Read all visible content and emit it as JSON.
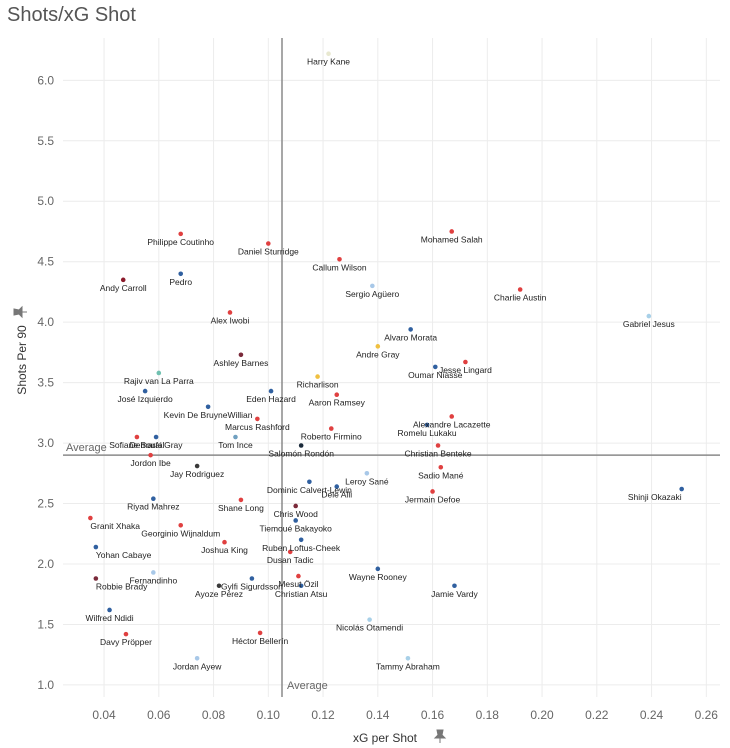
{
  "header": {
    "title": "Shots/xG Shot"
  },
  "chart_data": {
    "type": "scatter",
    "title": "Shots/xG Shot",
    "xlabel": "xG per Shot",
    "ylabel": "Shots Per 90",
    "xlim": [
      0.025,
      0.265
    ],
    "ylim": [
      0.9,
      6.35
    ],
    "xticks": [
      "0.04",
      "0.06",
      "0.08",
      "0.10",
      "0.12",
      "0.14",
      "0.16",
      "0.18",
      "0.20",
      "0.22",
      "0.24",
      "0.26"
    ],
    "yticks": [
      "1.0",
      "1.5",
      "2.0",
      "2.5",
      "3.0",
      "3.5",
      "4.0",
      "4.5",
      "5.0",
      "5.5",
      "6.0"
    ],
    "grid": true,
    "reference_lines": {
      "x": {
        "value": 0.105,
        "label": "Average"
      },
      "y": {
        "value": 2.9,
        "label": "Average"
      }
    },
    "points": [
      {
        "name": "Harry Kane",
        "x": 0.122,
        "y": 6.22,
        "color": "#e8e8d0"
      },
      {
        "name": "Mohamed Salah",
        "x": 0.167,
        "y": 4.75,
        "color": "#e04040"
      },
      {
        "name": "Philippe Coutinho",
        "x": 0.068,
        "y": 4.73,
        "color": "#e04040"
      },
      {
        "name": "Daniel Sturridge",
        "x": 0.1,
        "y": 4.65,
        "color": "#e04040"
      },
      {
        "name": "Callum Wilson",
        "x": 0.126,
        "y": 4.52,
        "color": "#e04040"
      },
      {
        "name": "Pedro",
        "x": 0.068,
        "y": 4.4,
        "color": "#3060a0"
      },
      {
        "name": "Andy Carroll",
        "x": 0.047,
        "y": 4.35,
        "color": "#8b1a2b"
      },
      {
        "name": "Sergio Agüero",
        "x": 0.138,
        "y": 4.3,
        "color": "#a8c8e8"
      },
      {
        "name": "Charlie Austin",
        "x": 0.192,
        "y": 4.27,
        "color": "#e04040"
      },
      {
        "name": "Alex Iwobi",
        "x": 0.086,
        "y": 4.08,
        "color": "#e04040"
      },
      {
        "name": "Gabriel Jesus",
        "x": 0.239,
        "y": 4.05,
        "color": "#a8d0e8"
      },
      {
        "name": "Alvaro Morata",
        "x": 0.152,
        "y": 3.94,
        "color": "#3060a0"
      },
      {
        "name": "Andre Gray",
        "x": 0.14,
        "y": 3.8,
        "color": "#f0c040"
      },
      {
        "name": "Ashley Barnes",
        "x": 0.09,
        "y": 3.73,
        "color": "#7a2a3a"
      },
      {
        "name": "Jesse Lingard",
        "x": 0.172,
        "y": 3.67,
        "color": "#e04040"
      },
      {
        "name": "Oumar Niasse",
        "x": 0.161,
        "y": 3.63,
        "color": "#3060a0"
      },
      {
        "name": "Rajiv van La Parra",
        "x": 0.06,
        "y": 3.58,
        "color": "#70c0b0"
      },
      {
        "name": "Richarlison",
        "x": 0.118,
        "y": 3.55,
        "color": "#f0c040"
      },
      {
        "name": "Eden Hazard",
        "x": 0.101,
        "y": 3.43,
        "color": "#3060a0"
      },
      {
        "name": "Aaron Ramsey",
        "x": 0.125,
        "y": 3.4,
        "color": "#e04040"
      },
      {
        "name": "José Izquierdo",
        "x": 0.055,
        "y": 3.43,
        "color": "#3060a0"
      },
      {
        "name": "Kevin De BruyneWillian",
        "x": 0.078,
        "y": 3.3,
        "color": "#3060a0"
      },
      {
        "name": "Alexandre Lacazette",
        "x": 0.167,
        "y": 3.22,
        "color": "#e04040"
      },
      {
        "name": "Marcus Rashford",
        "x": 0.096,
        "y": 3.2,
        "color": "#e04040"
      },
      {
        "name": "Roberto Firmino",
        "x": 0.123,
        "y": 3.12,
        "color": "#e04040"
      },
      {
        "name": "Romelu Lukaku",
        "x": 0.158,
        "y": 3.15,
        "color": "#3060a0"
      },
      {
        "name": "Sofiane Boufal",
        "x": 0.052,
        "y": 3.05,
        "color": "#e04040"
      },
      {
        "name": "Demarai Gray",
        "x": 0.059,
        "y": 3.05,
        "color": "#3060a0"
      },
      {
        "name": "Tom Ince",
        "x": 0.088,
        "y": 3.05,
        "color": "#70a0c0"
      },
      {
        "name": "Salomón Rondón",
        "x": 0.112,
        "y": 2.98,
        "color": "#1a2a3a"
      },
      {
        "name": "Christian Benteke",
        "x": 0.162,
        "y": 2.98,
        "color": "#e04040"
      },
      {
        "name": "Jordon Ibe",
        "x": 0.057,
        "y": 2.9,
        "color": "#e04040"
      },
      {
        "name": "Jay Rodriguez",
        "x": 0.074,
        "y": 2.81,
        "color": "#3a3a3a"
      },
      {
        "name": "Sadio Mané",
        "x": 0.163,
        "y": 2.8,
        "color": "#e04040"
      },
      {
        "name": "Leroy Sané",
        "x": 0.136,
        "y": 2.75,
        "color": "#a8c8e8"
      },
      {
        "name": "Dominic Calvert-Lewin",
        "x": 0.115,
        "y": 2.68,
        "color": "#3060a0"
      },
      {
        "name": "Dele Alli",
        "x": 0.125,
        "y": 2.64,
        "color": "#3060a0"
      },
      {
        "name": "Jermain Defoe",
        "x": 0.16,
        "y": 2.6,
        "color": "#e04040"
      },
      {
        "name": "Shinji Okazaki",
        "x": 0.251,
        "y": 2.62,
        "color": "#3060a0"
      },
      {
        "name": "Riyad Mahrez",
        "x": 0.058,
        "y": 2.54,
        "color": "#3060a0"
      },
      {
        "name": "Shane Long",
        "x": 0.09,
        "y": 2.53,
        "color": "#e04040"
      },
      {
        "name": "Chris Wood",
        "x": 0.11,
        "y": 2.48,
        "color": "#7a2a3a"
      },
      {
        "name": "Granit Xhaka",
        "x": 0.035,
        "y": 2.38,
        "color": "#e04040"
      },
      {
        "name": "Tiemoué Bakayoko",
        "x": 0.11,
        "y": 2.36,
        "color": "#3060a0"
      },
      {
        "name": "Georginio Wijnaldum",
        "x": 0.068,
        "y": 2.32,
        "color": "#e04040"
      },
      {
        "name": "Joshua King",
        "x": 0.084,
        "y": 2.18,
        "color": "#e04040"
      },
      {
        "name": "Ruben Loftus-Cheek",
        "x": 0.112,
        "y": 2.2,
        "color": "#3060a0"
      },
      {
        "name": "Yohan Cabaye",
        "x": 0.037,
        "y": 2.14,
        "color": "#3060a0"
      },
      {
        "name": "Dusan Tadic",
        "x": 0.108,
        "y": 2.1,
        "color": "#e04040"
      },
      {
        "name": "Robbie Brady",
        "x": 0.037,
        "y": 1.88,
        "color": "#7a2a3a"
      },
      {
        "name": "Fernandinho",
        "x": 0.058,
        "y": 1.93,
        "color": "#a8c8e8"
      },
      {
        "name": "Gylfi Sigurdsson",
        "x": 0.094,
        "y": 1.88,
        "color": "#3060a0"
      },
      {
        "name": "Ayoze Pérez",
        "x": 0.082,
        "y": 1.82,
        "color": "#3a3a3a"
      },
      {
        "name": "Mesut Özil",
        "x": 0.111,
        "y": 1.9,
        "color": "#e04040"
      },
      {
        "name": "Christian Atsu",
        "x": 0.112,
        "y": 1.82,
        "color": "#3060a0"
      },
      {
        "name": "Wayne Rooney",
        "x": 0.14,
        "y": 1.96,
        "color": "#3060a0"
      },
      {
        "name": "Jamie Vardy",
        "x": 0.168,
        "y": 1.82,
        "color": "#3060a0"
      },
      {
        "name": "Wilfred Ndidi",
        "x": 0.042,
        "y": 1.62,
        "color": "#3060a0"
      },
      {
        "name": "Nicolás Otamendi",
        "x": 0.137,
        "y": 1.54,
        "color": "#a8d0e8"
      },
      {
        "name": "Davy Pröpper",
        "x": 0.048,
        "y": 1.42,
        "color": "#e04040"
      },
      {
        "name": "Héctor Bellerín",
        "x": 0.097,
        "y": 1.43,
        "color": "#e04040"
      },
      {
        "name": "Tammy Abraham",
        "x": 0.151,
        "y": 1.22,
        "color": "#a8d0e8"
      },
      {
        "name": "Jordan Ayew",
        "x": 0.074,
        "y": 1.22,
        "color": "#a8c8e8"
      }
    ]
  }
}
